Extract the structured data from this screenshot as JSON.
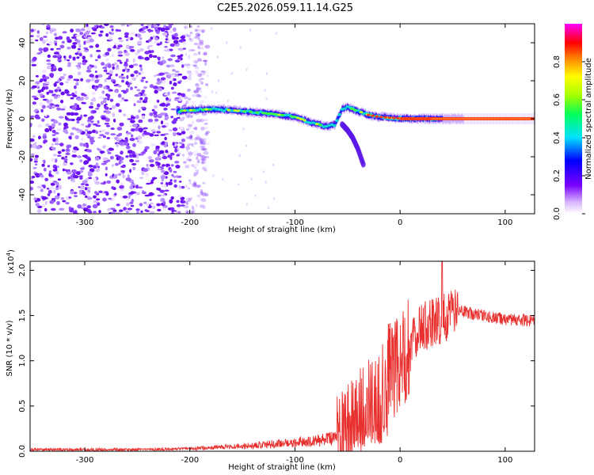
{
  "title": "C2E5.2026.059.11.14.G25",
  "chart_data": [
    {
      "type": "heatmap",
      "name": "spectrogram",
      "xlabel": "Height of straight line (km)",
      "ylabel": "Frequency (Hz)",
      "xlim": [
        -352,
        128
      ],
      "ylim": [
        -50,
        50
      ],
      "xticks": [
        -300,
        -200,
        -100,
        0,
        100
      ],
      "xtick_labels": [
        "-300",
        "-200",
        "-100",
        "0",
        "100"
      ],
      "yticks": [
        -40,
        -20,
        0,
        20,
        40
      ],
      "ytick_labels": [
        "-40",
        "-20",
        "0",
        "20",
        "40"
      ],
      "noise_region_x": [
        -352,
        -205
      ],
      "main_trace": {
        "x": [
          -212,
          -200,
          -180,
          -160,
          -140,
          -120,
          -100,
          -85,
          -70,
          -62,
          -55,
          -50,
          -40,
          -30,
          -20,
          -10,
          0,
          10,
          30,
          60,
          100,
          128
        ],
        "y": [
          4,
          4.5,
          5,
          4.5,
          3.5,
          2.5,
          1,
          -2,
          -4,
          -3,
          5,
          6,
          4,
          2,
          1,
          0.5,
          0.2,
          0.1,
          0,
          0,
          0,
          0
        ]
      },
      "branch_trace": {
        "x": [
          -55,
          -50,
          -45,
          -40,
          -35
        ],
        "y": [
          -3,
          -6,
          -10,
          -16,
          -24
        ]
      },
      "colorbar": {
        "label": "Normalized spectral amplitude",
        "range": [
          0,
          1
        ],
        "ticks": [
          0.0,
          0.2,
          0.4,
          0.6,
          0.8
        ],
        "tick_labels": [
          "0.0",
          "0.2",
          "0.4",
          "0.6",
          "0.8"
        ]
      }
    },
    {
      "type": "line",
      "name": "snr",
      "xlabel": "Height of straight line (km)",
      "ylabel": "SNR (10 * v/v)",
      "scale_label": "(x10",
      "scale_exp": "4",
      "scale_close": ")",
      "xlim": [
        -352,
        128
      ],
      "ylim": [
        0,
        2.1
      ],
      "xticks": [
        -300,
        -200,
        -100,
        0,
        100
      ],
      "xtick_labels": [
        "-300",
        "-200",
        "-100",
        "0",
        "100"
      ],
      "yticks": [
        0,
        0.5,
        1.0,
        1.5,
        2.0
      ],
      "ytick_labels": [
        "0.0",
        "0.5",
        "1.0",
        "1.5",
        "2.0"
      ],
      "color": "#e8312f",
      "envelope": {
        "x": [
          -352,
          -250,
          -200,
          -150,
          -100,
          -60,
          -45,
          -40,
          -30,
          -20,
          -15,
          -10,
          0,
          10,
          20,
          30,
          40,
          50,
          60,
          80,
          100,
          128
        ],
        "y": [
          0.02,
          0.02,
          0.03,
          0.06,
          0.1,
          0.15,
          0.3,
          0.5,
          0.55,
          0.6,
          0.8,
          0.95,
          1.0,
          1.25,
          1.4,
          1.45,
          1.5,
          1.55,
          1.55,
          1.5,
          1.47,
          1.45
        ]
      },
      "peak": {
        "x": 40,
        "y": 2.1
      }
    }
  ]
}
